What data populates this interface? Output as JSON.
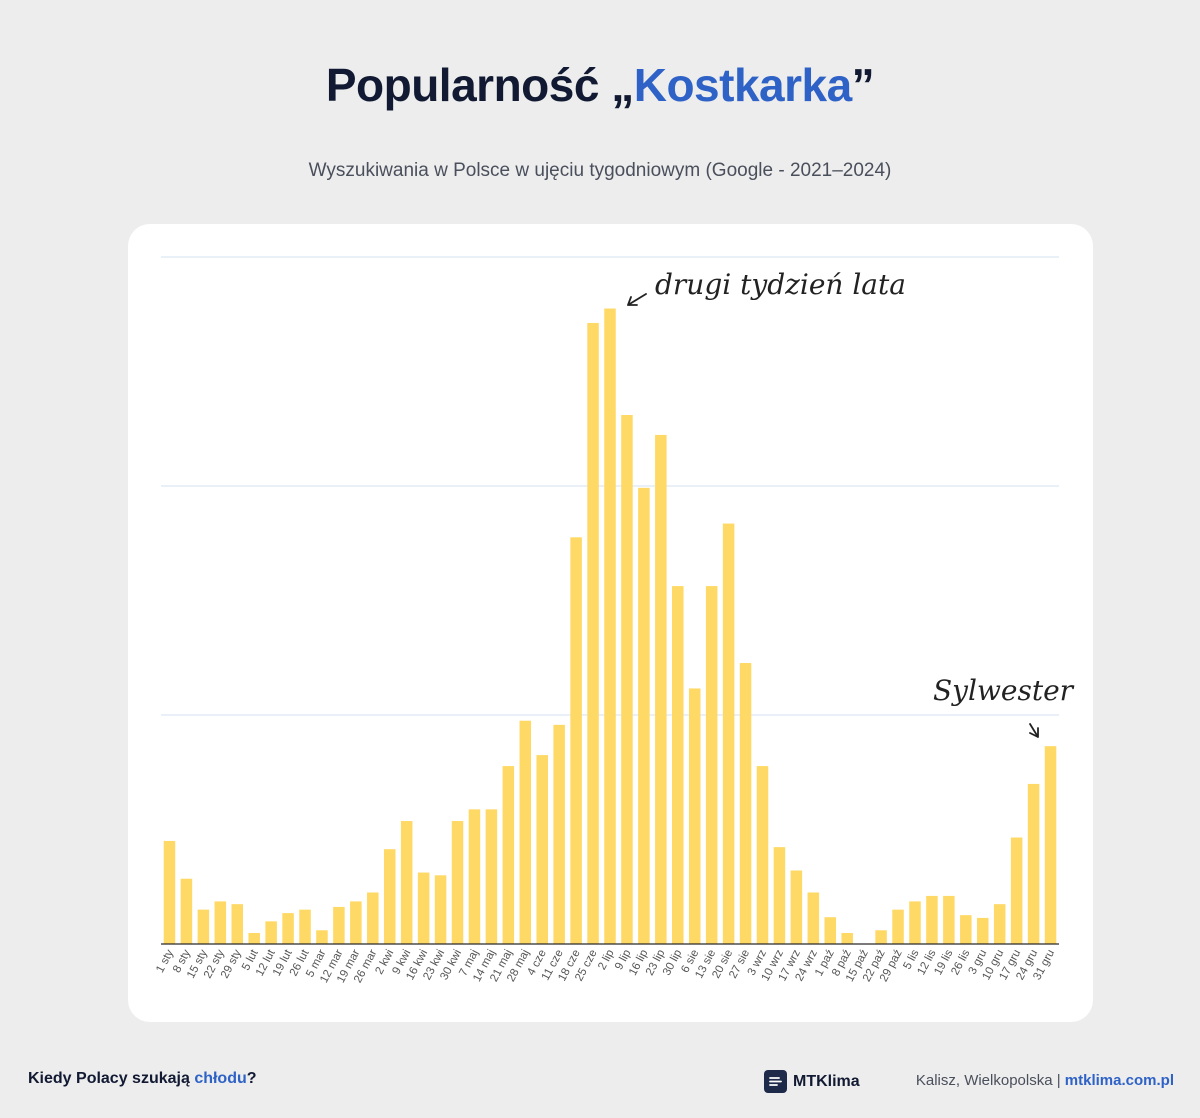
{
  "header": {
    "title_prefix": "Popularność „",
    "title_keyword": "Kostkarka",
    "title_suffix": "”",
    "subtitle": "Wyszukiwania w Polsce w ujęciu tygodniowym (Google - 2021–2024)"
  },
  "annotations": {
    "peak": "drugi tydzień lata",
    "end": "Sylwester"
  },
  "footer": {
    "question_prefix": "Kiedy Polacy szukają ",
    "question_highlight": "chłodu",
    "question_suffix": "?",
    "brand": "MTKlima",
    "location": "Kalisz, Wielkopolska | ",
    "url": "mtklima.com.pl"
  },
  "colors": {
    "bar": "#ffd966",
    "accent": "#2e62c7",
    "grid": "#d3e2f0"
  },
  "chart_data": {
    "type": "bar",
    "title": "Popularność „Kostkarka”",
    "subtitle": "Wyszukiwania w Polsce w ujęciu tygodniowym (Google - 2021–2024)",
    "xlabel": "",
    "ylabel": "",
    "ylim": [
      0,
      100
    ],
    "gridlines": [
      33.33,
      66.67,
      100
    ],
    "categories": [
      "1 sty",
      "8 sty",
      "15 sty",
      "22 sty",
      "29 sty",
      "5 lut",
      "12 lut",
      "19 lut",
      "26 lut",
      "5 mar",
      "12 mar",
      "19 mar",
      "26 mar",
      "2 kwi",
      "9 kwi",
      "16 kwi",
      "23 kwi",
      "30 kwi",
      "7 maj",
      "14 maj",
      "21 maj",
      "28 maj",
      "4 cze",
      "11 cze",
      "18 cze",
      "25 cze",
      "2 lip",
      "9 lip",
      "16 lip",
      "23 lip",
      "30 lip",
      "6 sie",
      "13 sie",
      "20 sie",
      "27 sie",
      "3 wrz",
      "10 wrz",
      "17 wrz",
      "24 wrz",
      "1 paź",
      "8 paź",
      "15 paź",
      "22 paź",
      "29 paź",
      "5 lis",
      "12 lis",
      "19 lis",
      "26 lis",
      "3 gru",
      "10 gru",
      "17 gru",
      "24 gru",
      "31 gru"
    ],
    "values": [
      15,
      9.5,
      5,
      6.2,
      5.8,
      1.6,
      3.3,
      4.5,
      5,
      2,
      5.4,
      6.2,
      7.5,
      13.8,
      17.9,
      10.4,
      10,
      17.9,
      19.6,
      19.6,
      25.9,
      32.5,
      27.5,
      31.9,
      59.2,
      90.4,
      92.5,
      77,
      66.4,
      74.1,
      52.1,
      37.2,
      52.1,
      61.2,
      40.9,
      25.9,
      14.1,
      10.7,
      7.5,
      3.9,
      1.6,
      0,
      2,
      5,
      6.2,
      7,
      7,
      4.2,
      3.8,
      5.8,
      15.5,
      23.3,
      28.8
    ]
  }
}
